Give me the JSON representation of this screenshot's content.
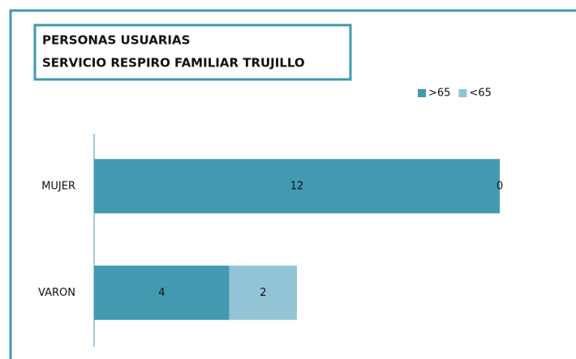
{
  "chart_data": {
    "type": "stacked-bar-horizontal",
    "title": [
      "PERSONAS USUARIAS",
      "SERVICIO RESPIRO FAMILIAR TRUJILLO"
    ],
    "categories": [
      "MUJER",
      "VARON"
    ],
    "series": [
      {
        "name": ">65",
        "color": "#4399b0",
        "values": [
          12,
          4
        ]
      },
      {
        "name": "<65",
        "color": "#93c4d6",
        "values": [
          0,
          2
        ]
      }
    ],
    "legend": "top-right"
  }
}
